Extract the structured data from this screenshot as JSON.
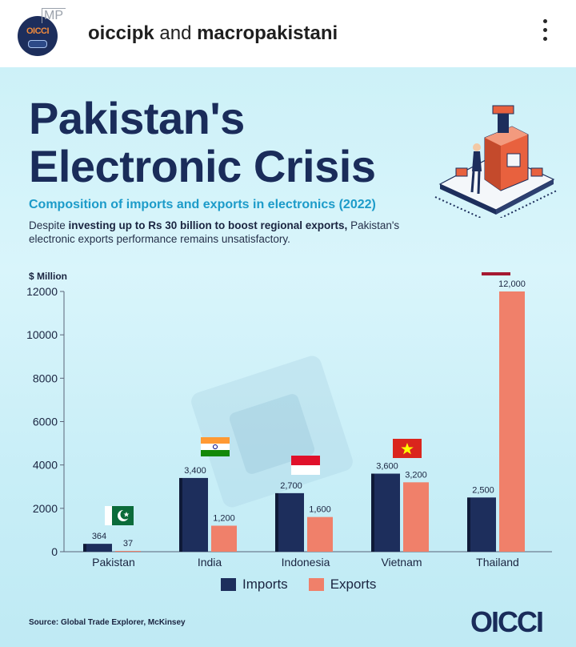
{
  "post": {
    "author_primary": "oiccipk",
    "joiner": "and",
    "author_secondary": "macropakistani",
    "avatar_text": "OICCI",
    "collab_mark": "MP"
  },
  "infographic": {
    "title_line1": "Pakistan's",
    "title_line2": "Electronic Crisis",
    "subtitle": "Composition of imports and exports in electronics (2022)",
    "desc_pre": "Despite ",
    "desc_bold": "investing up to Rs 30 billion to boost regional exports,",
    "desc_post": " Pakistan's electronic exports performance remains unsatisfactory.",
    "unit_label": "$ Million",
    "source": "Source: Global Trade Explorer, McKinsey",
    "logo": "OICCI"
  },
  "colors": {
    "imports": "#1d2e5c",
    "exports": "#f0806a",
    "title": "#1a2c5a",
    "subtitle": "#1c9bc9"
  },
  "chart_data": {
    "type": "bar",
    "categories": [
      "Pakistan",
      "India",
      "Indonesia",
      "Vietnam",
      "Thailand"
    ],
    "series": [
      {
        "name": "Imports",
        "values": [
          364,
          3400,
          2700,
          3600,
          2500
        ]
      },
      {
        "name": "Exports",
        "values": [
          37,
          1200,
          1600,
          3200,
          12000
        ]
      }
    ],
    "data_labels": {
      "Imports": [
        "364",
        "3,400",
        "2,700",
        "3,600",
        "2,500"
      ],
      "Exports": [
        "37",
        "1,200",
        "1,600",
        "3,200",
        "12,000"
      ]
    },
    "ylabel": "$ Million",
    "ylim": [
      0,
      12000
    ],
    "yticks": [
      "0",
      "2000",
      "4000",
      "6000",
      "8000",
      "10000",
      "12000"
    ],
    "ytick_values": [
      0,
      2000,
      4000,
      6000,
      8000,
      10000,
      12000
    ],
    "grid": false,
    "legend_placement": "bottom-center",
    "flags": [
      "pakistan-flag",
      "india-flag",
      "indonesia-flag",
      "vietnam-flag",
      "thailand-flag"
    ]
  },
  "legend": {
    "imports_label": "Imports",
    "exports_label": "Exports"
  }
}
